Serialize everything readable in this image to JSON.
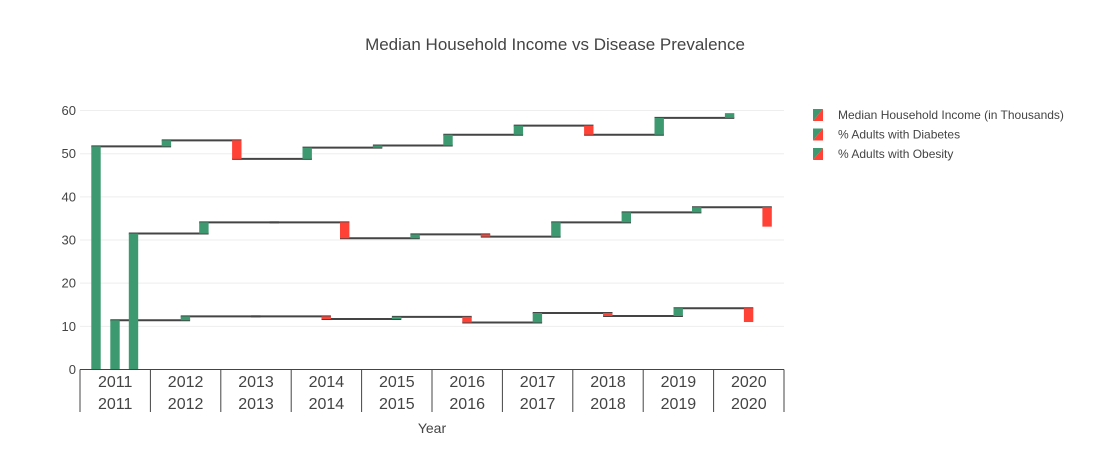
{
  "chart_data": {
    "type": "waterfall",
    "title": "Median Household Income vs Disease Prevalence",
    "xlabel": "Year",
    "ylabel": "",
    "ylim": [
      0,
      63
    ],
    "yticks": [
      0,
      10,
      20,
      30,
      40,
      50,
      60
    ],
    "grid": true,
    "legend_position": "top-right",
    "increasing_color": "#3d9970",
    "decreasing_color": "#ff4136",
    "connector_color": "#444444",
    "categories": [
      [
        "2011",
        "2011"
      ],
      [
        "2012",
        "2012"
      ],
      [
        "2013",
        "2013"
      ],
      [
        "2014",
        "2014"
      ],
      [
        "2015",
        "2015"
      ],
      [
        "2016",
        "2016"
      ],
      [
        "2017",
        "2017"
      ],
      [
        "2018",
        "2018"
      ],
      [
        "2019",
        "2019"
      ],
      [
        "2020",
        "2020"
      ]
    ],
    "series": [
      {
        "name": "Median Household Income (in Thousands)",
        "values": [
          51.7,
          53.1,
          48.8,
          51.4,
          51.9,
          54.4,
          56.5,
          54.4,
          58.3,
          59.4
        ]
      },
      {
        "name": "% Adults with Diabetes",
        "values": [
          11.4,
          12.3,
          12.3,
          11.7,
          12.2,
          10.9,
          13.1,
          12.4,
          14.2,
          11.0
        ]
      },
      {
        "name": "% Adults with Obesity",
        "values": [
          31.5,
          34.1,
          34.1,
          30.4,
          31.3,
          30.8,
          34.1,
          36.4,
          37.6,
          33.1
        ]
      }
    ]
  }
}
